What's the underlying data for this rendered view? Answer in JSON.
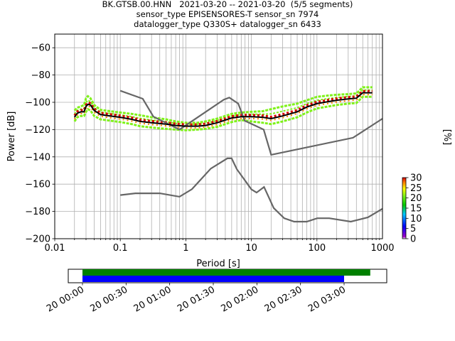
{
  "title": {
    "line1": "BK.GTSB.00.HNN   2021-03-20 -- 2021-03-20  (5/5 segments)",
    "line2": "sensor_type EPISENSORES-T sensor_sn 7974",
    "line3": "datalogger_type Q330S+ datalogger_sn 6433"
  },
  "chart_data": [
    {
      "type": "line",
      "xscale": "log",
      "xlabel": "Period [s]",
      "ylabel": "Power [dB]",
      "xlim": [
        0.01,
        1000
      ],
      "ylim": [
        -200,
        -50
      ],
      "grid": true,
      "xticks": [
        {
          "value": 0.01,
          "label": "0.01"
        },
        {
          "value": 0.1,
          "label": "0.1"
        },
        {
          "value": 1,
          "label": "1"
        },
        {
          "value": 10,
          "label": "10"
        },
        {
          "value": 100,
          "label": "100"
        },
        {
          "value": 1000,
          "label": "1000"
        }
      ],
      "yticks": [
        -200,
        -180,
        -160,
        -140,
        -120,
        -100,
        -80,
        -60
      ],
      "series": [
        {
          "role": "new-high-noise-model",
          "color": "#666666",
          "x": [
            0.1,
            0.22,
            0.32,
            0.8,
            3.8,
            4.6,
            6.3,
            7.9,
            15.4,
            20,
            354.8,
            1000
          ],
          "y": [
            -91.5,
            -97.4,
            -110.5,
            -120,
            -98,
            -96.5,
            -101,
            -113.5,
            -120,
            -138.5,
            -126,
            -112
          ]
        },
        {
          "role": "new-low-noise-model",
          "color": "#666666",
          "x": [
            0.1,
            0.17,
            0.4,
            0.8,
            1.24,
            2.4,
            4.3,
            5,
            6,
            10,
            12,
            15.6,
            21.9,
            31.6,
            45,
            70,
            101,
            154,
            328,
            600,
            1000
          ],
          "y": [
            -168,
            -166.7,
            -166.7,
            -169.2,
            -163.7,
            -148.6,
            -141.1,
            -141.1,
            -149,
            -163.8,
            -166.2,
            -162.1,
            -177.5,
            -185,
            -187.5,
            -187.5,
            -185,
            -185,
            -187.5,
            -184.4,
            -178
          ]
        },
        {
          "role": "mode",
          "color": "#000000",
          "x": [
            0.02,
            0.022,
            0.025,
            0.028,
            0.03,
            0.032,
            0.035,
            0.04,
            0.05,
            0.07,
            0.1,
            0.15,
            0.2,
            0.3,
            0.5,
            0.7,
            1,
            1.5,
            2,
            3,
            4,
            5,
            7,
            10,
            15,
            20,
            30,
            50,
            70,
            100,
            150,
            200,
            300,
            400,
            500,
            700
          ],
          "y": [
            -111,
            -108,
            -107,
            -107,
            -103,
            -101.5,
            -102,
            -106,
            -109,
            -110,
            -111,
            -112.5,
            -114,
            -115,
            -116,
            -117,
            -117.5,
            -117.5,
            -117,
            -115,
            -113,
            -111.5,
            -110.5,
            -110.5,
            -111,
            -112,
            -110,
            -107,
            -103.5,
            -101,
            -99.5,
            -98.5,
            -97.5,
            -97,
            -93,
            -93
          ]
        },
        {
          "role": "ppsd-spread",
          "colorbar_bin": "0-5",
          "color": "#7ff21a",
          "x": [
            0.02,
            0.022,
            0.025,
            0.028,
            0.03,
            0.032,
            0.035,
            0.04,
            0.05,
            0.07,
            0.1,
            0.15,
            0.2,
            0.3,
            0.5,
            0.7,
            1,
            1.5,
            2,
            3,
            4,
            5,
            7,
            10,
            15,
            20,
            30,
            50,
            70,
            100,
            150,
            200,
            300,
            400,
            500,
            700
          ],
          "y_high": [
            -106,
            -104,
            -103,
            -102,
            -97,
            -95.5,
            -97,
            -102,
            -105.5,
            -106.5,
            -107.5,
            -108.5,
            -109.5,
            -111,
            -112.5,
            -114,
            -115,
            -115,
            -114,
            -112,
            -110,
            -108.5,
            -107.5,
            -107,
            -106.5,
            -105,
            -103,
            -101,
            -98.5,
            -96,
            -95,
            -94.5,
            -94,
            -93.5,
            -89,
            -89
          ],
          "y_low": [
            -114,
            -111,
            -110,
            -110,
            -107,
            -105,
            -106,
            -110,
            -112.5,
            -113.5,
            -114.5,
            -116,
            -117.5,
            -118.5,
            -119.5,
            -120,
            -120.5,
            -120,
            -119.5,
            -118,
            -116,
            -114.5,
            -113,
            -114,
            -115,
            -116,
            -114,
            -111,
            -107.5,
            -104.5,
            -103,
            -102,
            -101,
            -100.5,
            -96,
            -96
          ]
        }
      ],
      "colorbar": {
        "label": "[%]",
        "range": [
          0,
          30
        ],
        "ticks": [
          0,
          5,
          10,
          15,
          20,
          25,
          30
        ],
        "colormap": "pqlx"
      }
    },
    {
      "type": "timeline",
      "xlim_hours": [
        0,
        3.5
      ],
      "ticks": [
        {
          "hour": 0,
          "label": "20 00:00"
        },
        {
          "hour": 0.5,
          "label": "20 00:30"
        },
        {
          "hour": 1,
          "label": "20 01:00"
        },
        {
          "hour": 1.5,
          "label": "20 01:30"
        },
        {
          "hour": 2,
          "label": "20 02:00"
        },
        {
          "hour": 2.5,
          "label": "20 02:30"
        },
        {
          "hour": 3,
          "label": "20 03:00"
        }
      ],
      "bars": [
        {
          "role": "data-available",
          "color": "#008000",
          "start_hour": 0,
          "end_hour": 3.3
        },
        {
          "role": "data-used",
          "color": "#0000ff",
          "start_hour": 0,
          "end_hour": 3.0
        }
      ]
    }
  ]
}
